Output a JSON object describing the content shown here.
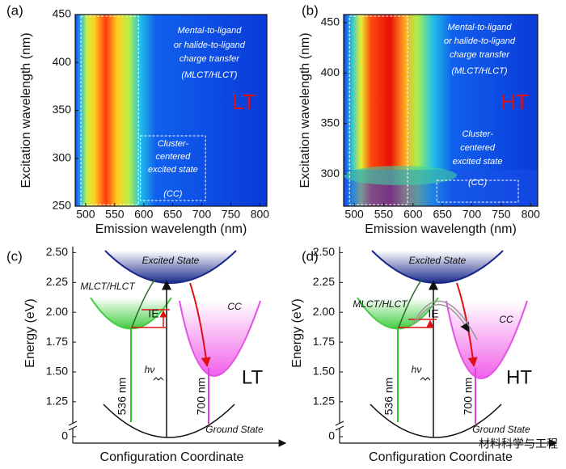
{
  "panels": [
    {
      "label": "(a)",
      "xlabel": "Emission wavelength (nm)",
      "ylabel": "Excitation wavelength (nm)",
      "xlim": [
        482,
        812
      ],
      "xticks": [
        500,
        550,
        600,
        650,
        700,
        750,
        800
      ],
      "ylim": [
        250,
        450
      ],
      "yticks": [
        250,
        300,
        350,
        400,
        450
      ],
      "tag": "LT",
      "annotations": [
        "Mental-to-ligand",
        "or halide-to-ligand",
        "charge transfer",
        "(MLCT/HLCT)",
        "Cluster-",
        "centered",
        "excited state",
        "(CC)"
      ]
    },
    {
      "label": "(b)",
      "xlabel": "Emission wavelength (nm)",
      "ylabel": "Excitation wavelength (nm)",
      "xlim": [
        482,
        812
      ],
      "xticks": [
        500,
        550,
        600,
        650,
        700,
        750,
        800
      ],
      "ylim": [
        268,
        458
      ],
      "yticks": [
        300,
        350,
        400,
        450
      ],
      "tag": "HT",
      "annotations": [
        "Mental-to-ligand",
        "or halide-to-ligand",
        "charge transfer",
        "(MLCT/HLCT)",
        "Cluster-",
        "centered",
        "excited state",
        "(CC)"
      ]
    },
    {
      "label": "(c)",
      "xlabel": "Configuration Coordinate",
      "ylabel": "Energy (eV)",
      "ylim": [
        1.1,
        2.55
      ],
      "yticks": [
        {
          "value": 1.25,
          "label": "1.25"
        },
        {
          "value": 1.5,
          "label": "1.50"
        },
        {
          "value": 1.75,
          "label": "1.75"
        },
        {
          "value": 2.0,
          "label": "2.00"
        },
        {
          "value": 2.25,
          "label": "2.25"
        },
        {
          "value": 2.5,
          "label": "2.50"
        }
      ],
      "zero_tick": 0,
      "tag": "LT",
      "labels": [
        "Excited State",
        "MLCT/HLCT",
        "CC",
        "IE",
        "hν",
        "536 nm",
        "700 nm",
        "Ground State"
      ]
    },
    {
      "label": "(d)",
      "xlabel": "Configuration Coordinate",
      "ylabel": "Energy (eV)",
      "ylim": [
        1.1,
        2.55
      ],
      "yticks": [
        {
          "value": 1.25,
          "label": "1.25"
        },
        {
          "value": 1.5,
          "label": "1.50"
        },
        {
          "value": 1.75,
          "label": "1.75"
        },
        {
          "value": 2.0,
          "label": "2.00"
        },
        {
          "value": 2.25,
          "label": "2.25"
        },
        {
          "value": 2.5,
          "label": "2.50"
        }
      ],
      "zero_tick": 0,
      "tag": "HT",
      "labels": [
        "Excited State",
        "MLCT/HLCT",
        "CC",
        "IE",
        "hν",
        "536 nm",
        "700 nm",
        "Ground State"
      ]
    }
  ],
  "watermark": "材料科学与工程"
}
